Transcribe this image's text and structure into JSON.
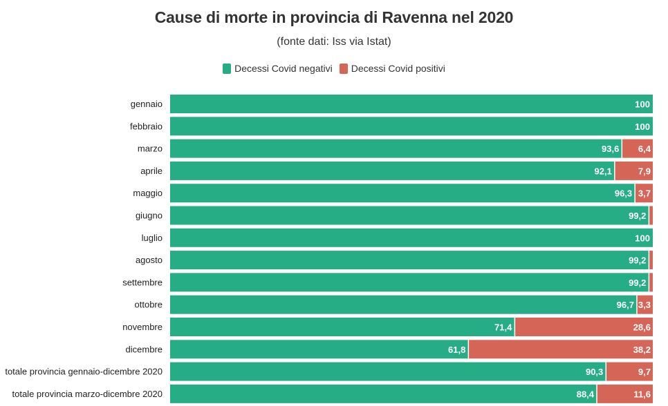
{
  "colors": {
    "negative": "#27ad86",
    "positive": "#d56556"
  },
  "chart_data": {
    "type": "bar",
    "orientation": "horizontal",
    "stacked": true,
    "title": "Cause di morte in provincia di Ravenna nel 2020",
    "subtitle": "(fonte dati: Iss via Istat)",
    "xlim": [
      0,
      100
    ],
    "categories": [
      "gennaio",
      "febbraio",
      "marzo",
      "aprile",
      "maggio",
      "giugno",
      "luglio",
      "agosto",
      "settembre",
      "ottobre",
      "novembre",
      "dicembre",
      "totale provincia gennaio-dicembre 2020",
      "totale provincia marzo-dicembre 2020"
    ],
    "series": [
      {
        "name": "Decessi Covid negativi",
        "values": [
          100,
          100,
          93.6,
          92.1,
          96.3,
          99.2,
          100,
          99.2,
          99.2,
          96.7,
          71.4,
          61.8,
          90.3,
          88.4
        ],
        "labels": [
          "100",
          "100",
          "93,6",
          "92,1",
          "96,3",
          "99,2",
          "100",
          "99,2",
          "99,2",
          "96,7",
          "71,4",
          "61,8",
          "90,3",
          "88,4"
        ]
      },
      {
        "name": "Decessi Covid positivi",
        "values": [
          0,
          0,
          6.4,
          7.9,
          3.7,
          0.8,
          0,
          0.8,
          0.8,
          3.3,
          28.6,
          38.2,
          9.7,
          11.6
        ],
        "labels": [
          "",
          "",
          "6,4",
          "7,9",
          "3,7",
          "",
          "",
          "",
          "",
          "3,3",
          "28,6",
          "38,2",
          "9,7",
          "11,6"
        ]
      }
    ]
  }
}
